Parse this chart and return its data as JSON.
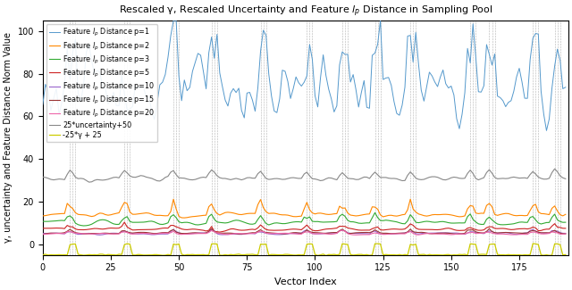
{
  "title": "Rescaled γ, Rescaled Uncertainty and Feature $l_p$ Distance in Sampling Pool",
  "xlabel": "Vector Index",
  "ylabel": "γ, uncertainty and Feature Distance Norm Value",
  "xlim": [
    0,
    193
  ],
  "ylim": [
    -5,
    105
  ],
  "n_points": 193,
  "colors": {
    "p1": "#5599cc",
    "p2": "#ff8800",
    "p3": "#33aa33",
    "p5": "#cc2222",
    "p10": "#9966cc",
    "p15": "#993333",
    "p20": "#ee66aa",
    "uncertainty": "#888888",
    "gamma": "#cccc00"
  },
  "legend_labels": [
    "Feature $l_p$ Distance p=1",
    "Feature $l_p$ Distance p=2",
    "Feature $l_p$ Distance p=3",
    "Feature $l_p$ Distance p=5",
    "Feature $l_p$ Distance p=10",
    "Feature $l_p$ Distance p=15",
    "Feature $l_p$ Distance p=20",
    "25*uncertainty+50",
    "-25*γ + 25"
  ],
  "figsize": [
    6.4,
    3.25
  ],
  "dpi": 100,
  "vline_groups": [
    [
      10,
      11,
      12
    ],
    [
      30,
      31,
      32
    ],
    [
      48,
      49,
      50
    ],
    [
      62,
      63,
      64
    ],
    [
      80,
      81,
      82
    ],
    [
      97,
      98,
      99
    ],
    [
      110,
      111,
      112
    ],
    [
      122,
      123,
      124
    ],
    [
      135,
      136,
      137
    ],
    [
      157,
      158,
      159
    ],
    [
      164,
      165,
      166
    ],
    [
      180,
      181,
      182
    ],
    [
      188,
      189,
      190
    ]
  ],
  "yticks": [
    0,
    20,
    40,
    60,
    80,
    100
  ],
  "xticks": [
    0,
    25,
    50,
    75,
    100,
    125,
    150,
    175
  ]
}
